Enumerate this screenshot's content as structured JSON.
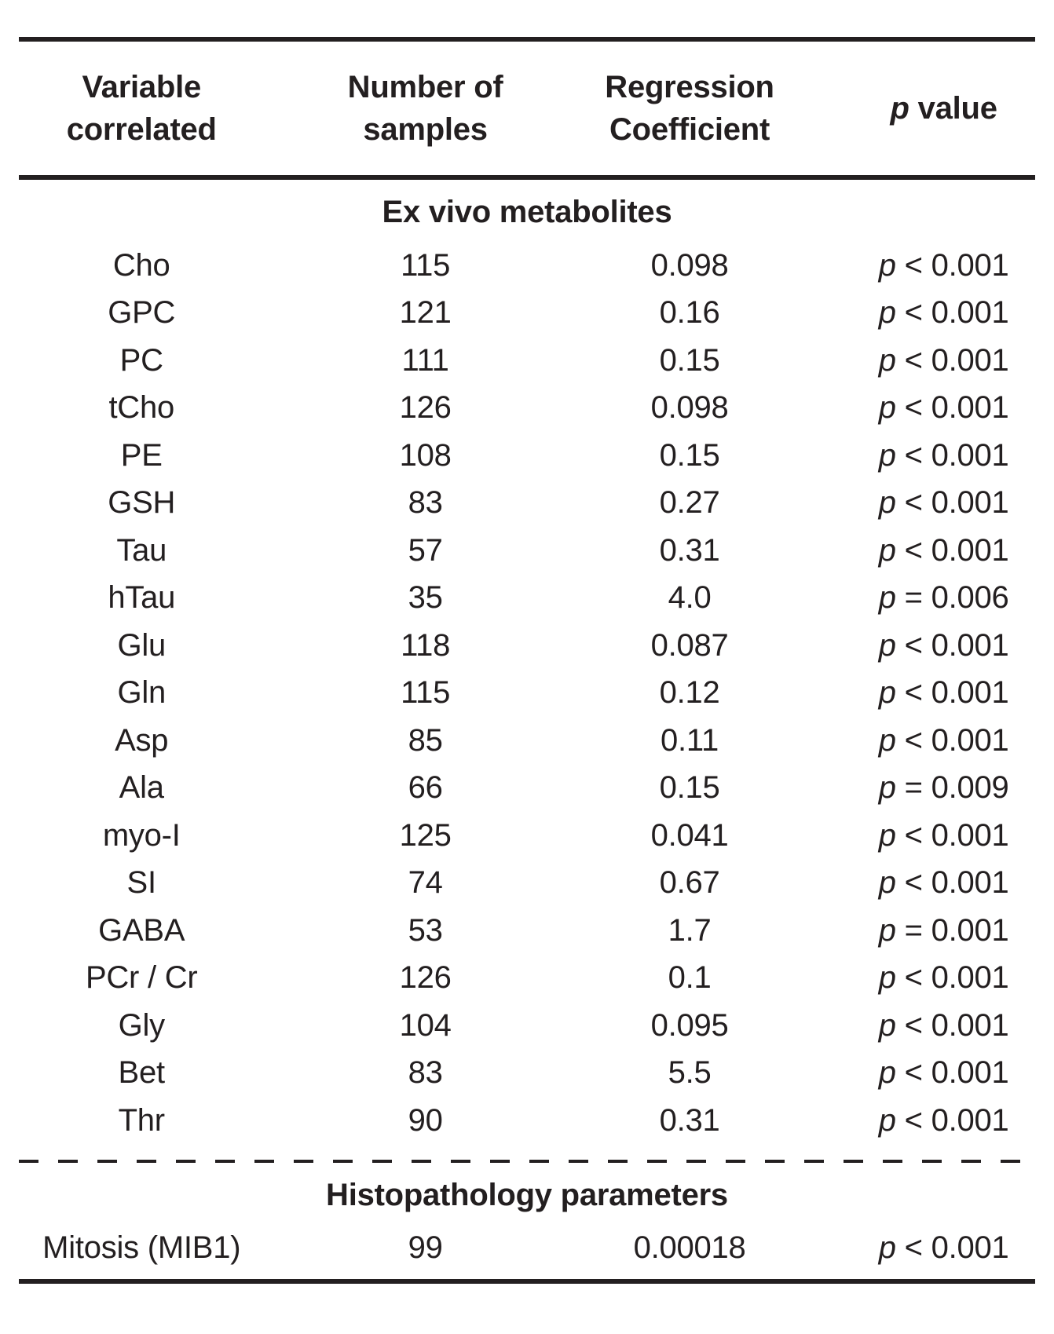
{
  "colors": {
    "text": "#231f20",
    "rule": "#231f20",
    "background": "#ffffff"
  },
  "header": {
    "col1": {
      "line1": "Variable",
      "line2": "correlated"
    },
    "col2": {
      "line1": "Number of",
      "line2": "samples"
    },
    "col3": {
      "line1": "Regression",
      "line2": "Coefficient"
    },
    "col4": {
      "symbol": "p",
      "rest": " value"
    }
  },
  "sections": [
    {
      "title": "Ex vivo metabolites",
      "rows": [
        {
          "variable": "Cho",
          "n": "115",
          "coef": "0.098",
          "p_symbol": "p",
          "p_rest": " < 0.001"
        },
        {
          "variable": "GPC",
          "n": "121",
          "coef": "0.16",
          "p_symbol": "p",
          "p_rest": " < 0.001"
        },
        {
          "variable": "PC",
          "n": "111",
          "coef": "0.15",
          "p_symbol": "p",
          "p_rest": " < 0.001"
        },
        {
          "variable": "tCho",
          "n": "126",
          "coef": "0.098",
          "p_symbol": "p",
          "p_rest": " < 0.001"
        },
        {
          "variable": "PE",
          "n": "108",
          "coef": "0.15",
          "p_symbol": "p",
          "p_rest": " < 0.001"
        },
        {
          "variable": "GSH",
          "n": "83",
          "coef": "0.27",
          "p_symbol": "p",
          "p_rest": " < 0.001"
        },
        {
          "variable": "Tau",
          "n": "57",
          "coef": "0.31",
          "p_symbol": "p",
          "p_rest": " < 0.001"
        },
        {
          "variable": "hTau",
          "n": "35",
          "coef": "4.0",
          "p_symbol": "p",
          "p_rest": " = 0.006"
        },
        {
          "variable": "Glu",
          "n": "118",
          "coef": "0.087",
          "p_symbol": "p",
          "p_rest": " < 0.001"
        },
        {
          "variable": "Gln",
          "n": "115",
          "coef": "0.12",
          "p_symbol": "p",
          "p_rest": " < 0.001"
        },
        {
          "variable": "Asp",
          "n": "85",
          "coef": "0.11",
          "p_symbol": "p",
          "p_rest": " < 0.001"
        },
        {
          "variable": "Ala",
          "n": "66",
          "coef": "0.15",
          "p_symbol": "p",
          "p_rest": " = 0.009"
        },
        {
          "variable": "myo-I",
          "n": "125",
          "coef": "0.041",
          "p_symbol": "p",
          "p_rest": " < 0.001"
        },
        {
          "variable": "SI",
          "n": "74",
          "coef": "0.67",
          "p_symbol": "p",
          "p_rest": " < 0.001"
        },
        {
          "variable": "GABA",
          "n": "53",
          "coef": "1.7",
          "p_symbol": "p",
          "p_rest": " = 0.001"
        },
        {
          "variable": "PCr / Cr",
          "n": "126",
          "coef": "0.1",
          "p_symbol": "p",
          "p_rest": " < 0.001"
        },
        {
          "variable": "Gly",
          "n": "104",
          "coef": "0.095",
          "p_symbol": "p",
          "p_rest": " < 0.001"
        },
        {
          "variable": "Bet",
          "n": "83",
          "coef": "5.5",
          "p_symbol": "p",
          "p_rest": " < 0.001"
        },
        {
          "variable": "Thr",
          "n": "90",
          "coef": "0.31",
          "p_symbol": "p",
          "p_rest": " < 0.001"
        }
      ]
    },
    {
      "title": "Histopathology parameters",
      "rows": [
        {
          "variable": "Mitosis (MIB1)",
          "n": "99",
          "coef": "0.00018",
          "p_symbol": "p",
          "p_rest": " < 0.001"
        }
      ]
    }
  ]
}
